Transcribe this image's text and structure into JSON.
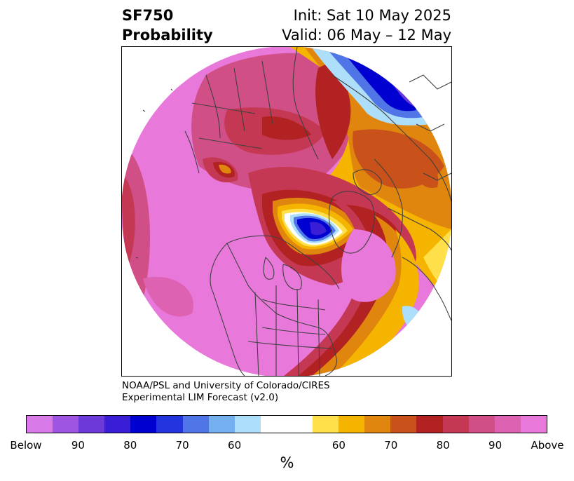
{
  "title": {
    "left_line1": "SF750",
    "left_line2": "Probability",
    "right_line1": "Init: Sat 10 May 2025",
    "right_line2": "Valid: 06 May – 12 May"
  },
  "credit": {
    "line1": "NOAA/PSL and University of Colorado/CIRES",
    "line2": "Experimental LIM Forecast (v2.0)"
  },
  "colorbar": {
    "colors": [
      "#d87be8",
      "#9d55e2",
      "#6c3ad9",
      "#3a1ed6",
      "#0000d0",
      "#2335dd",
      "#4f75e6",
      "#74b0f0",
      "#aedffa",
      "#ffffff",
      "#ffffff",
      "#ffe04a",
      "#f4b400",
      "#e0860f",
      "#c8521a",
      "#b22222",
      "#c43853",
      "#d04f86",
      "#dd62b2",
      "#e878da"
    ],
    "tick_labels": [
      "Below",
      "90",
      "80",
      "70",
      "60",
      "60",
      "70",
      "80",
      "90",
      "Above"
    ],
    "unit": "%"
  },
  "map": {
    "projection": "north-polar-stereographic",
    "features": [
      "coastlines",
      "country-borders",
      "state-borders"
    ],
    "field_colors": {
      "above_strong": "#e878da",
      "above_mid": "#d04f86",
      "above_low": "#c43853",
      "red": "#b22222",
      "orange": "#e0860f",
      "gold": "#f4b400",
      "yellow": "#ffe04a",
      "light_blue": "#aedffa",
      "mid_blue": "#4f75e6",
      "deep_blue": "#0000d0",
      "below_purple": "#6c3ad9"
    }
  }
}
